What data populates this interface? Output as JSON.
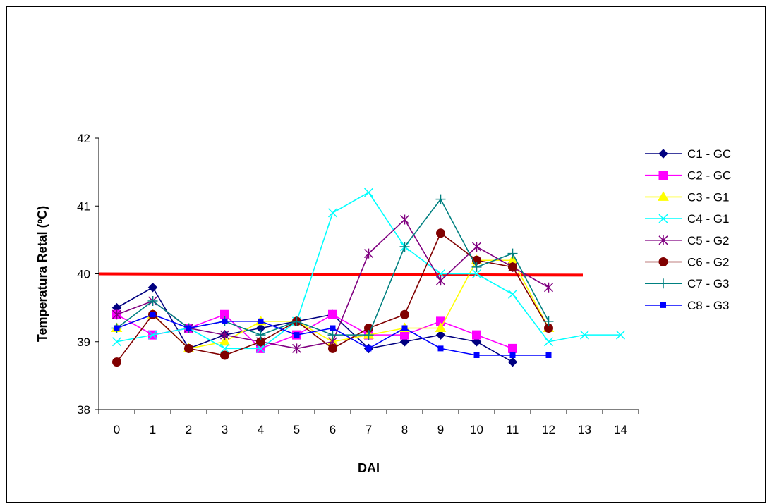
{
  "chart_data": {
    "type": "line",
    "title": "",
    "xlabel": "DAI",
    "ylabel": "Temperatura Retal (ºC)",
    "ylim": [
      38,
      42
    ],
    "yticks": [
      38,
      39,
      40,
      41,
      42
    ],
    "categories": [
      "0",
      "1",
      "2",
      "3",
      "4",
      "5",
      "6",
      "7",
      "8",
      "9",
      "10",
      "11",
      "12",
      "13",
      "14"
    ],
    "legend_position": "right",
    "grid": false,
    "series": [
      {
        "name": "C1 - GC",
        "color": "#000080",
        "marker": "diamond",
        "values": [
          39.5,
          39.8,
          38.9,
          39.1,
          39.2,
          39.3,
          39.4,
          38.9,
          39.0,
          39.1,
          39.0,
          38.7,
          null,
          null,
          null
        ]
      },
      {
        "name": "C2 - GC",
        "color": "#FF00FF",
        "marker": "square",
        "values": [
          39.4,
          39.1,
          39.2,
          39.4,
          38.9,
          39.1,
          39.4,
          39.1,
          39.1,
          39.3,
          39.1,
          38.9,
          null,
          null,
          null
        ]
      },
      {
        "name": "C3 - G1",
        "color": "#FFFF00",
        "marker": "triangle",
        "values": [
          39.2,
          39.4,
          38.9,
          39.0,
          39.3,
          39.3,
          39.0,
          39.1,
          39.2,
          39.2,
          40.2,
          40.2,
          39.2,
          null,
          null
        ]
      },
      {
        "name": "C4 - G1",
        "color": "#00FFFF",
        "marker": "x",
        "values": [
          39.0,
          39.1,
          39.2,
          38.9,
          38.9,
          39.3,
          40.9,
          41.2,
          40.4,
          40.0,
          40.0,
          39.7,
          39.0,
          39.1,
          39.1
        ]
      },
      {
        "name": "C5 - G2",
        "color": "#800080",
        "marker": "star",
        "values": [
          39.4,
          39.6,
          39.2,
          39.1,
          39.0,
          38.9,
          39.0,
          40.3,
          40.8,
          39.9,
          40.4,
          40.1,
          39.8,
          null,
          null
        ]
      },
      {
        "name": "C6 - G2",
        "color": "#800000",
        "marker": "circle",
        "values": [
          38.7,
          39.4,
          38.9,
          38.8,
          39.0,
          39.3,
          38.9,
          39.2,
          39.4,
          40.6,
          40.2,
          40.1,
          39.2,
          null,
          null
        ]
      },
      {
        "name": "C7 - G3",
        "color": "#008080",
        "marker": "plus",
        "values": [
          39.2,
          39.6,
          39.2,
          39.3,
          39.1,
          39.3,
          39.1,
          39.1,
          40.4,
          41.1,
          40.1,
          40.3,
          39.3,
          null,
          null
        ]
      },
      {
        "name": "C8 - G3",
        "color": "#0000FF",
        "marker": "smallsquare",
        "values": [
          39.2,
          39.4,
          39.2,
          39.3,
          39.3,
          39.1,
          39.2,
          38.9,
          39.2,
          38.9,
          38.8,
          38.8,
          38.8,
          null,
          null
        ]
      }
    ],
    "reference_line": {
      "y_start": 40.0,
      "y_end": 39.98,
      "color": "#FF0000"
    }
  }
}
